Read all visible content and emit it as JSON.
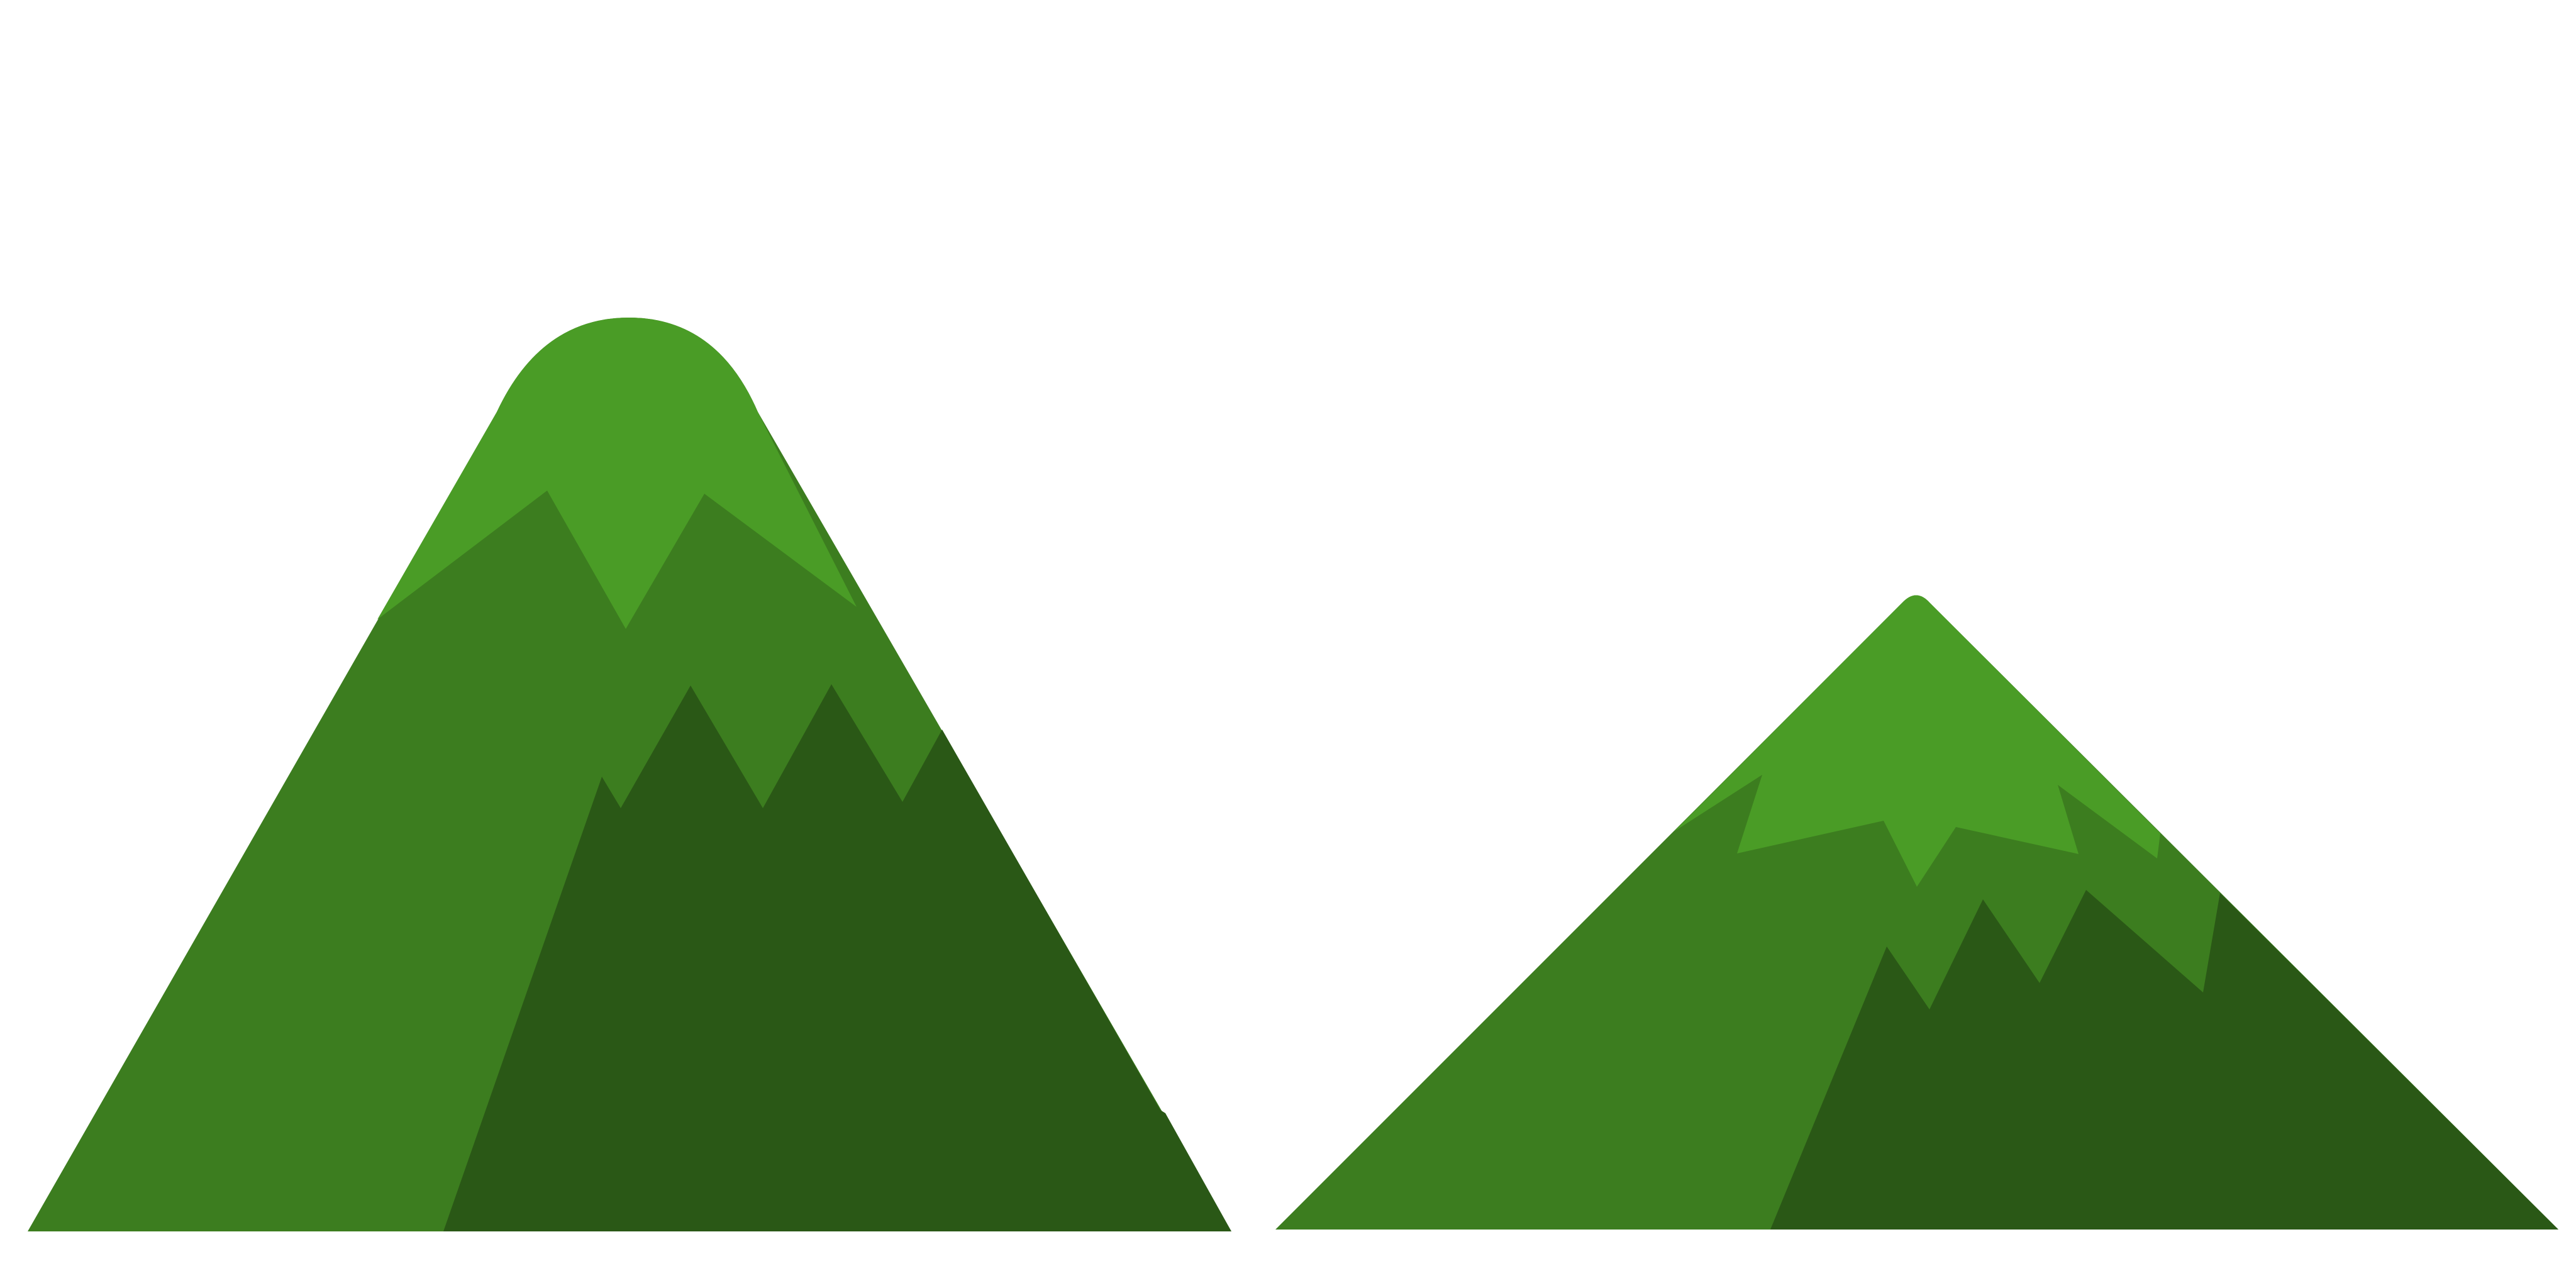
{
  "scene": {
    "background": "#ffffff",
    "colors": {
      "snow_cap": "#4a9c26",
      "mid_slope": "#3c7d1f",
      "shadow": "#2a5816"
    },
    "mountains": [
      {
        "name": "left-mountain",
        "shape": "rounded-peak"
      },
      {
        "name": "right-mountain",
        "shape": "pointed-peak"
      }
    ]
  }
}
